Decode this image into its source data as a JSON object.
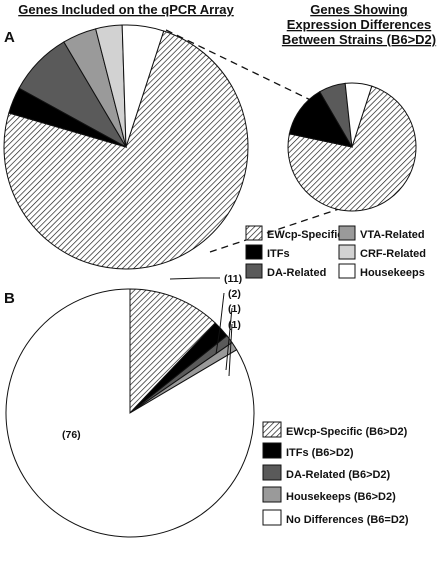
{
  "panels": {
    "a_letter": "A",
    "b_letter": "B"
  },
  "chart_data": [
    {
      "type": "pie",
      "panel": "A",
      "title": "Genes Included on the qPCR Array",
      "slices": [
        {
          "key": "ewcp",
          "name": "EWcp-Specific",
          "value": 74.5,
          "fill": "hatch",
          "color": "#ffffff"
        },
        {
          "key": "itfs",
          "name": "ITFs",
          "value": 3.5,
          "fill": "solid",
          "color": "#000000"
        },
        {
          "key": "da",
          "name": "DA-Related",
          "value": 8.5,
          "fill": "solid",
          "color": "#5a5a5a"
        },
        {
          "key": "vta",
          "name": "VTA-Related",
          "value": 4.5,
          "fill": "solid",
          "color": "#9a9a9a"
        },
        {
          "key": "crf",
          "name": "CRF-Related",
          "value": 3.5,
          "fill": "solid",
          "color": "#d2d2d2"
        },
        {
          "key": "house",
          "name": "Housekeeps",
          "value": 5.5,
          "fill": "solid",
          "color": "#ffffff"
        }
      ]
    },
    {
      "type": "pie",
      "panel": "A",
      "title": "Genes Showing Expression Differences Between Strains (B6>D2)",
      "title_lines": [
        "Genes Showing",
        "Expression Differences",
        "Between Strains (B6>D2)"
      ],
      "slices": [
        {
          "key": "ewcp",
          "name": "EWcp-Specific",
          "value": 73.3,
          "fill": "hatch",
          "color": "#ffffff"
        },
        {
          "key": "itfs",
          "name": "ITFs",
          "value": 13.3,
          "fill": "solid",
          "color": "#000000"
        },
        {
          "key": "da",
          "name": "DA-Related",
          "value": 6.7,
          "fill": "solid",
          "color": "#5a5a5a"
        },
        {
          "key": "house",
          "name": "Housekeeps",
          "value": 6.7,
          "fill": "solid",
          "color": "#ffffff"
        }
      ]
    },
    {
      "type": "pie",
      "panel": "B",
      "title": "",
      "slices": [
        {
          "key": "ewcp_b",
          "name": "EWcp-Specific (B6>D2)",
          "value": 11,
          "label": "(11)",
          "fill": "hatch",
          "color": "#ffffff"
        },
        {
          "key": "itfs_b",
          "name": "ITFs (B6>D2)",
          "value": 2,
          "label": "(2)",
          "fill": "solid",
          "color": "#000000"
        },
        {
          "key": "da_b",
          "name": "DA-Related (B6>D2)",
          "value": 1,
          "label": "(1)",
          "fill": "solid",
          "color": "#5a5a5a"
        },
        {
          "key": "house_b",
          "name": "Housekeeps (B6>D2)",
          "value": 1,
          "label": "(1)",
          "fill": "solid",
          "color": "#9a9a9a"
        },
        {
          "key": "nodiff",
          "name": "No Differences (B6=D2)",
          "value": 76,
          "label": "(76)",
          "fill": "solid",
          "color": "#ffffff"
        }
      ]
    }
  ],
  "legend_a": [
    {
      "key": "ewcp",
      "label": "EWcp-Specific",
      "fill": "hatch",
      "color": "#ffffff"
    },
    {
      "key": "vta",
      "label": "VTA-Related",
      "fill": "solid",
      "color": "#9a9a9a"
    },
    {
      "key": "itfs",
      "label": "ITFs",
      "fill": "solid",
      "color": "#000000"
    },
    {
      "key": "crf",
      "label": "CRF-Related",
      "fill": "solid",
      "color": "#d2d2d2"
    },
    {
      "key": "da",
      "label": "DA-Related",
      "fill": "solid",
      "color": "#5a5a5a"
    },
    {
      "key": "house",
      "label": "Housekeeps",
      "fill": "solid",
      "color": "#ffffff"
    }
  ],
  "legend_b": [
    {
      "key": "ewcp_b",
      "label": "EWcp-Specific (B6>D2)",
      "fill": "hatch",
      "color": "#ffffff"
    },
    {
      "key": "itfs_b",
      "label": "ITFs (B6>D2)",
      "fill": "solid",
      "color": "#000000"
    },
    {
      "key": "da_b",
      "label": "DA-Related (B6>D2)",
      "fill": "solid",
      "color": "#5a5a5a"
    },
    {
      "key": "house_b",
      "label": "Housekeeps (B6>D2)",
      "fill": "solid",
      "color": "#9a9a9a"
    },
    {
      "key": "nodiff",
      "label": "No Differences (B6=D2)",
      "fill": "solid",
      "color": "#ffffff"
    }
  ]
}
